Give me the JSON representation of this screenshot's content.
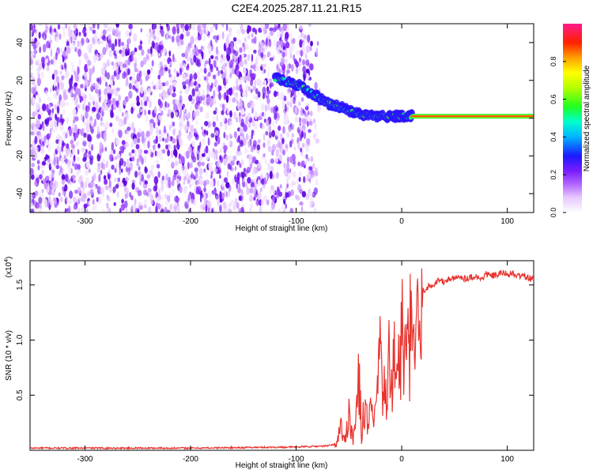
{
  "title": "C2E4.2025.287.11.21.R15",
  "chart_data": [
    {
      "type": "heatmap",
      "name": "spectrogram",
      "xlabel": "Height of straight line (km)",
      "ylabel": "Frequency (Hz)",
      "xlim": [
        -352,
        125
      ],
      "ylim": [
        -50,
        50
      ],
      "xticks": [
        -300,
        -200,
        -100,
        0,
        100
      ],
      "yticks": [
        -40,
        -20,
        0,
        20,
        40
      ],
      "colorbar": {
        "label": "Normalized spectral amplitude",
        "range": [
          0,
          1
        ],
        "ticks": [
          "0.0",
          "0.2",
          "0.4",
          "0.6",
          "0.8"
        ],
        "tick_values": [
          0,
          0.2,
          0.4,
          0.6,
          0.8
        ]
      },
      "noise_region_x": [
        -352,
        -85
      ],
      "signal_track": {
        "x": [
          -120,
          -100,
          -85,
          -70,
          -55,
          -40,
          -25,
          -10,
          0,
          10
        ],
        "freq_hz": [
          21,
          18,
          13,
          8,
          5,
          2,
          1,
          1,
          1,
          1
        ]
      },
      "constant_line": {
        "x": [
          10,
          125
        ],
        "freq_hz": 1
      }
    },
    {
      "type": "line",
      "name": "snr",
      "xlabel": "Height of straight line (km)",
      "ylabel": "SNR (10 * v/v)",
      "scale_label": "(x10",
      "scale_exp": "4",
      "xlim": [
        -352,
        125
      ],
      "ylim": [
        0,
        1.72
      ],
      "xticks": [
        -300,
        -200,
        -100,
        0,
        100
      ],
      "yticks": [
        0.5,
        1.0,
        1.5
      ],
      "ytick_labels": [
        "0.5",
        "1.0",
        "1.5"
      ],
      "series": [
        {
          "name": "SNR",
          "color": "#e8332e",
          "x": [
            -352,
            -300,
            -200,
            -100,
            -70,
            -62,
            -58,
            -54,
            -50,
            -46,
            -42,
            -40,
            -38,
            -35,
            -32,
            -29,
            -26,
            -23,
            -20,
            -18,
            -16,
            -14,
            -12,
            -10,
            -8,
            -6,
            -4,
            -2,
            0,
            2,
            4,
            6,
            8,
            10,
            12,
            14,
            16,
            18,
            20,
            25,
            30,
            35,
            40,
            45,
            50,
            55,
            60,
            65,
            70,
            75,
            80,
            85,
            90,
            95,
            100,
            105,
            110,
            115,
            120,
            125
          ],
          "values": [
            0.02,
            0.02,
            0.02,
            0.03,
            0.04,
            0.06,
            0.3,
            0.08,
            0.45,
            0.12,
            0.5,
            0.92,
            0.15,
            0.6,
            0.2,
            0.55,
            0.25,
            0.7,
            1.3,
            0.3,
            0.9,
            0.4,
            1.02,
            0.6,
            1.3,
            0.7,
            1.1,
            0.8,
            1.45,
            0.95,
            1.2,
            1.05,
            1.3,
            1.1,
            1.35,
            1.25,
            1.4,
            1.3,
            1.45,
            1.48,
            1.5,
            1.55,
            1.52,
            1.56,
            1.55,
            1.58,
            1.56,
            1.57,
            1.58,
            1.55,
            1.6,
            1.58,
            1.59,
            1.61,
            1.6,
            1.6,
            1.58,
            1.59,
            1.56,
            1.55
          ]
        }
      ]
    }
  ]
}
